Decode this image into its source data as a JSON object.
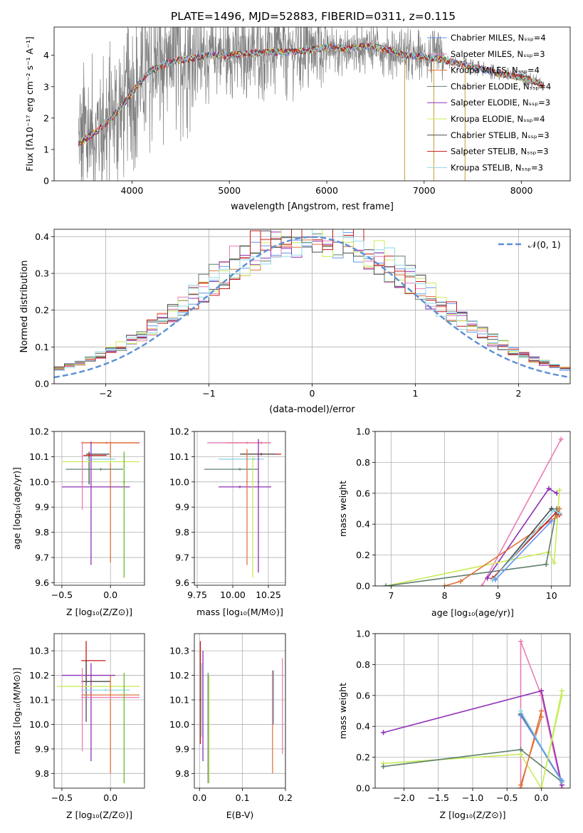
{
  "figure": {
    "title": "PLATE=1496, MJD=52883, FIBERID=0311, z=0.115"
  },
  "palette": {
    "chabrier_miles": "#6495ed",
    "salpeter_miles": "#e87eb5",
    "kroupa_miles": "#e1753a",
    "chabrier_elodie": "#5f7f6c",
    "salpeter_elodie": "#8e2fb5",
    "kroupa_elodie": "#c8ec5a",
    "chabrier_stelib": "#4a4a4a",
    "salpeter_stelib": "#c41919",
    "kroupa_stelib": "#8fd8e6",
    "observed": "#808080",
    "normal_curve": "#5b8fd4"
  },
  "chart_data": [
    {
      "id": "spectrum",
      "type": "line",
      "title": "PLATE=1496, MJD=52883, FIBERID=0311, z=0.115",
      "xlabel": "wavelength [Angstrom, rest frame]",
      "ylabel": "Flux [f_λ 10^-17 erg cm^-2 s^-1 A^-1]",
      "xlim": [
        3200,
        8500
      ],
      "ylim": [
        0,
        4.9
      ],
      "xticks": [
        4000,
        5000,
        6000,
        7000,
        8000
      ],
      "yticks": [
        0,
        1,
        2,
        3,
        4
      ],
      "legend_position": "top-right",
      "series": [
        {
          "name": "Chabrier MILES, N_SSP=4",
          "color": "#6495ed"
        },
        {
          "name": "Salpeter MILES, N_SSP=3",
          "color": "#e87eb5"
        },
        {
          "name": "Kroupa MILES, N_SSP=4",
          "color": "#e1753a"
        },
        {
          "name": "Chabrier ELODIE, N_SSP=4",
          "color": "#5f7f6c"
        },
        {
          "name": "Salpeter ELODIE, N_SSP=3",
          "color": "#8e2fb5"
        },
        {
          "name": "Kroupa ELODIE, N_SSP=4",
          "color": "#c8ec5a"
        },
        {
          "name": "Chabrier STELIB, N_SSP=3",
          "color": "#4a4a4a"
        },
        {
          "name": "Salpeter STELIB, N_SSP=3",
          "color": "#c41919"
        },
        {
          "name": "Kroupa STELIB, N_SSP=3",
          "color": "#8fd8e6"
        }
      ],
      "model_continuum": {
        "x": [
          3450,
          3550,
          3650,
          3750,
          3850,
          3950,
          4050,
          4150,
          4250,
          4400,
          4600,
          4800,
          5000,
          5200,
          5400,
          5600,
          5800,
          6000,
          6200,
          6400,
          6600,
          6800,
          7000,
          7200,
          7400,
          7600,
          7800,
          8000,
          8200,
          8230
        ],
        "y": [
          1.2,
          1.4,
          1.6,
          1.9,
          2.2,
          2.6,
          3.0,
          3.4,
          3.6,
          3.8,
          3.9,
          4.0,
          4.0,
          4.05,
          4.1,
          4.1,
          4.15,
          4.25,
          4.2,
          4.3,
          4.2,
          4.0,
          3.95,
          3.85,
          3.7,
          3.55,
          3.4,
          3.3,
          3.1,
          3.05
        ]
      },
      "observed_range": [
        3450,
        8230
      ]
    },
    {
      "id": "residuals",
      "type": "line",
      "xlabel": "(data-model)/error",
      "ylabel": "Normed distribution",
      "xlim": [
        -2.5,
        2.5
      ],
      "ylim": [
        0,
        0.42
      ],
      "xticks": [
        -2,
        -1,
        0,
        1,
        2
      ],
      "yticks": [
        0.0,
        0.1,
        0.2,
        0.3,
        0.4
      ],
      "legend": "N(0,1)",
      "legend_position": "top-right",
      "bin_width": 0.1
    },
    {
      "id": "age_vs_Z",
      "type": "scatter",
      "xlabel": "Z [log10(Z/Z⊙)]",
      "ylabel": "age [log10(age/yr)]",
      "xlim": [
        -0.58,
        0.35
      ],
      "ylim": [
        9.59,
        10.2
      ],
      "xticks": [
        -0.5,
        0.0
      ],
      "xtick_labels": [
        "−0.5",
        "0.0"
      ],
      "yticks": [
        9.6,
        9.7,
        9.8,
        9.9,
        10.0,
        10.1,
        10.2
      ],
      "points": [
        {
          "x": -0.04,
          "y": 10.155,
          "x_lo": -0.29,
          "x_hi": 0.3,
          "y_lo": 10.15,
          "y_hi": 10.16,
          "color": "#e87eb5"
        },
        {
          "x": 0.0,
          "y": 10.155,
          "x_lo": -0.3,
          "x_hi": 0.3,
          "y_lo": 9.68,
          "y_hi": 10.16,
          "color": "#e1753a"
        },
        {
          "x": -0.22,
          "y": 10.11,
          "x_lo": -0.25,
          "x_hi": -0.01,
          "y_lo": 9.99,
          "y_hi": 10.12,
          "color": "#4a4a4a"
        },
        {
          "x": -0.22,
          "y": 10.105,
          "x_lo": -0.28,
          "x_hi": -0.04,
          "y_lo": 10.1,
          "y_hi": 10.11,
          "color": "#c41919"
        },
        {
          "x": 0.0,
          "y": 10.09,
          "x_lo": -0.25,
          "x_hi": 0.05,
          "y_lo": 10.085,
          "y_hi": 10.095,
          "color": "#8fd8e6"
        },
        {
          "x": 0.0,
          "y": 10.08,
          "x_lo": -0.5,
          "x_hi": 0.3,
          "y_lo": 10.075,
          "y_hi": 10.085,
          "color": "#c8ec5a"
        },
        {
          "x": -0.1,
          "y": 10.05,
          "x_lo": -0.46,
          "x_hi": 0.13,
          "y_lo": 10.045,
          "y_hi": 10.055,
          "color": "#5f7f6c"
        },
        {
          "x": -0.2,
          "y": 9.98,
          "x_lo": -0.5,
          "x_hi": 0.2,
          "y_lo": 9.67,
          "y_hi": 10.16,
          "color": "#8e2fb5"
        },
        {
          "x": 0.14,
          "y": 10.0,
          "x_lo": 0.13,
          "x_hi": 0.15,
          "y_lo": 9.62,
          "y_hi": 10.12,
          "color": "#6bbd2a"
        },
        {
          "x": -0.29,
          "y": 10.0,
          "x_lo": -0.3,
          "x_hi": -0.28,
          "y_lo": 9.89,
          "y_hi": 10.16,
          "color": "#e87eb5"
        }
      ]
    },
    {
      "id": "age_vs_mass",
      "type": "scatter",
      "xlabel": "mass [log10(M/M⊙)]",
      "ylabel": "",
      "xlim": [
        9.73,
        10.37
      ],
      "ylim": [
        9.59,
        10.2
      ],
      "xticks": [
        9.75,
        10.0,
        10.25
      ],
      "xtick_labels": [
        "9.75",
        "10.00",
        "10.25"
      ],
      "yticks": [
        9.6,
        9.7,
        9.8,
        9.9,
        10.0,
        10.1,
        10.2
      ],
      "points": [
        {
          "x": 10.2,
          "y": 10.155,
          "x_lo": 9.95,
          "x_hi": 10.26,
          "y_lo": 10.15,
          "y_hi": 10.16,
          "color": "#e1753a"
        },
        {
          "x": 10.1,
          "y": 10.155,
          "x_lo": 9.82,
          "x_hi": 10.27,
          "y_lo": 10.15,
          "y_hi": 10.16,
          "color": "#e87eb5"
        },
        {
          "x": 10.2,
          "y": 10.11,
          "x_lo": 10.06,
          "x_hi": 10.34,
          "y_lo": 10.105,
          "y_hi": 10.115,
          "color": "#c41919"
        },
        {
          "x": 10.18,
          "y": 10.11,
          "x_lo": 10.05,
          "x_hi": 10.3,
          "y_lo": 10.105,
          "y_hi": 10.115,
          "color": "#4a4a4a"
        },
        {
          "x": 10.15,
          "y": 10.09,
          "x_lo": 9.9,
          "x_hi": 10.22,
          "y_lo": 10.085,
          "y_hi": 10.095,
          "color": "#8fd8e6"
        },
        {
          "x": 10.05,
          "y": 10.05,
          "x_lo": 9.8,
          "x_hi": 10.18,
          "y_lo": 10.045,
          "y_hi": 10.055,
          "color": "#5f7f6c"
        },
        {
          "x": 10.05,
          "y": 9.98,
          "x_lo": 9.9,
          "x_hi": 10.27,
          "y_lo": 9.975,
          "y_hi": 9.985,
          "color": "#8e2fb5"
        },
        {
          "x": 10.18,
          "y": 10.0,
          "x_lo": 10.175,
          "x_hi": 10.185,
          "y_lo": 9.64,
          "y_hi": 10.17,
          "color": "#8e2fb5"
        },
        {
          "x": 10.14,
          "y": 10.0,
          "x_lo": 10.135,
          "x_hi": 10.145,
          "y_lo": 9.62,
          "y_hi": 10.1,
          "color": "#c8ec5a"
        },
        {
          "x": 10.1,
          "y": 10.0,
          "x_lo": 10.095,
          "x_hi": 10.105,
          "y_lo": 9.67,
          "y_hi": 10.13,
          "color": "#e1753a"
        }
      ]
    },
    {
      "id": "weight_vs_age",
      "type": "line",
      "xlabel": "age [log10(age/yr)]",
      "ylabel": "mass weight",
      "xlim": [
        6.7,
        10.35
      ],
      "ylim": [
        0.0,
        1.0
      ],
      "xticks": [
        7,
        8,
        9,
        10
      ],
      "yticks": [
        0.0,
        0.2,
        0.4,
        0.6,
        0.8,
        1.0
      ],
      "series": [
        {
          "color": "#e87eb5",
          "x": [
            8.7,
            10.18
          ],
          "y": [
            0.0,
            0.95
          ]
        },
        {
          "color": "#8e2fb5",
          "x": [
            8.8,
            9.95,
            10.1
          ],
          "y": [
            0.05,
            0.63,
            0.6
          ]
        },
        {
          "color": "#c8ec5a",
          "x": [
            6.9,
            9.95,
            10.05,
            10.15
          ],
          "y": [
            0.0,
            0.22,
            0.15,
            0.62
          ]
        },
        {
          "color": "#5f7f6c",
          "x": [
            6.9,
            9.9,
            10.1
          ],
          "y": [
            0.0,
            0.14,
            0.5
          ]
        },
        {
          "color": "#e1753a",
          "x": [
            8.0,
            8.3,
            10.1,
            10.15
          ],
          "y": [
            0.0,
            0.03,
            0.45,
            0.5
          ]
        },
        {
          "color": "#4a4a4a",
          "x": [
            8.9,
            10.0,
            10.15
          ],
          "y": [
            0.04,
            0.5,
            0.47
          ]
        },
        {
          "color": "#c41919",
          "x": [
            8.9,
            10.1,
            10.15
          ],
          "y": [
            0.05,
            0.48,
            0.46
          ]
        },
        {
          "color": "#8fd8e6",
          "x": [
            8.9,
            10.05,
            10.15
          ],
          "y": [
            0.04,
            0.49,
            0.47
          ]
        },
        {
          "color": "#6495ed",
          "x": [
            8.95,
            10.0
          ],
          "y": [
            0.04,
            0.42
          ]
        }
      ]
    },
    {
      "id": "mass_vs_Z",
      "type": "scatter",
      "xlabel": "Z [log10(Z/Z⊙)]",
      "ylabel": "mass [log10(M/M⊙)]",
      "xlim": [
        -0.58,
        0.35
      ],
      "ylim": [
        9.74,
        10.37
      ],
      "xticks": [
        -0.5,
        0.0
      ],
      "xtick_labels": [
        "−0.5",
        "0.0"
      ],
      "yticks": [
        9.8,
        9.9,
        10.0,
        10.1,
        10.2,
        10.3
      ],
      "points": [
        {
          "x": -0.25,
          "y": 10.26,
          "x_lo": -0.3,
          "x_hi": -0.05,
          "y_lo": 10.17,
          "y_hi": 10.34,
          "color": "#c41919"
        },
        {
          "x": -0.2,
          "y": 10.2,
          "x_lo": -0.5,
          "x_hi": 0.05,
          "y_lo": 9.85,
          "y_hi": 10.25,
          "color": "#8e2fb5"
        },
        {
          "x": -0.25,
          "y": 10.175,
          "x_lo": -0.3,
          "x_hi": 0.0,
          "y_lo": 10.01,
          "y_hi": 10.26,
          "color": "#4a4a4a"
        },
        {
          "x": 0.0,
          "y": 10.155,
          "x_lo": -0.55,
          "x_hi": 0.3,
          "y_lo": 10.15,
          "y_hi": 10.16,
          "color": "#c8ec5a"
        },
        {
          "x": -0.05,
          "y": 10.14,
          "x_lo": -0.3,
          "x_hi": 0.2,
          "y_lo": 10.135,
          "y_hi": 10.145,
          "color": "#8fd8e6"
        },
        {
          "x": 0.0,
          "y": 10.12,
          "x_lo": -0.3,
          "x_hi": 0.3,
          "y_lo": 9.8,
          "y_hi": 10.2,
          "color": "#e1753a"
        },
        {
          "x": 0.0,
          "y": 10.11,
          "x_lo": -0.3,
          "x_hi": 0.3,
          "y_lo": 10.105,
          "y_hi": 10.115,
          "color": "#e87eb5"
        },
        {
          "x": 0.14,
          "y": 10.05,
          "x_lo": 0.135,
          "x_hi": 0.145,
          "y_lo": 9.76,
          "y_hi": 10.21,
          "color": "#6bbd2a"
        },
        {
          "x": -0.29,
          "y": 10.05,
          "x_lo": -0.295,
          "x_hi": -0.285,
          "y_lo": 9.89,
          "y_hi": 10.23,
          "color": "#e87eb5"
        }
      ]
    },
    {
      "id": "mass_vs_EBV",
      "type": "scatter",
      "xlabel": "E(B-V)",
      "ylabel": "",
      "xlim": [
        -0.012,
        0.2
      ],
      "ylim": [
        9.74,
        10.37
      ],
      "xticks": [
        0.0,
        0.1,
        0.2
      ],
      "xtick_labels": [
        "0.0",
        "0.1",
        "0.2"
      ],
      "yticks": [
        9.8,
        9.9,
        10.0,
        10.1,
        10.2,
        10.3
      ],
      "points": [
        {
          "x": 0.002,
          "y": 10.1,
          "x_lo": 0.0,
          "x_hi": 0.004,
          "y_lo": 9.92,
          "y_hi": 10.34,
          "color": "#c41919"
        },
        {
          "x": 0.005,
          "y": 10.1,
          "x_lo": 0.004,
          "x_hi": 0.006,
          "y_lo": 9.95,
          "y_hi": 10.25,
          "color": "#8fd8e6"
        },
        {
          "x": 0.008,
          "y": 10.05,
          "x_lo": 0.007,
          "x_hi": 0.009,
          "y_lo": 9.85,
          "y_hi": 10.3,
          "color": "#8e2fb5"
        },
        {
          "x": 0.02,
          "y": 10.0,
          "x_lo": 0.019,
          "x_hi": 0.021,
          "y_lo": 9.76,
          "y_hi": 10.21,
          "color": "#5f7f6c"
        },
        {
          "x": 0.023,
          "y": 10.0,
          "x_lo": 0.022,
          "x_hi": 0.024,
          "y_lo": 9.76,
          "y_hi": 10.2,
          "color": "#c8ec5a"
        },
        {
          "x": 0.17,
          "y": 10.0,
          "x_lo": 0.169,
          "x_hi": 0.171,
          "y_lo": 9.8,
          "y_hi": 10.22,
          "color": "#e1753a"
        },
        {
          "x": 0.172,
          "y": 10.1,
          "x_lo": 0.171,
          "x_hi": 0.173,
          "y_lo": 10.0,
          "y_hi": 10.22,
          "color": "#6495ed"
        },
        {
          "x": 0.193,
          "y": 10.05,
          "x_lo": 0.192,
          "x_hi": 0.194,
          "y_lo": 9.88,
          "y_hi": 10.27,
          "color": "#e87eb5"
        }
      ]
    },
    {
      "id": "weight_vs_Z",
      "type": "line",
      "xlabel": "Z [log10(Z/Z⊙)]",
      "ylabel": "mass weight",
      "xlim": [
        -2.42,
        0.42
      ],
      "ylim": [
        0.0,
        1.0
      ],
      "xticks": [
        -2.0,
        -1.5,
        -1.0,
        -0.5,
        0.0
      ],
      "xtick_labels": [
        "−2.0",
        "−1.5",
        "−1.0",
        "−0.5",
        "0.0"
      ],
      "yticks": [
        0.0,
        0.2,
        0.4,
        0.6,
        0.8,
        1.0
      ],
      "series": [
        {
          "color": "#e87eb5",
          "x": [
            -0.3,
            -0.3,
            0.0,
            0.3
          ],
          "y": [
            0.0,
            0.95,
            0.6,
            0.0
          ]
        },
        {
          "color": "#8e2fb5",
          "x": [
            -2.3,
            0.0,
            0.3
          ],
          "y": [
            0.36,
            0.63,
            0.02
          ]
        },
        {
          "color": "#c8ec5a",
          "x": [
            -2.3,
            -0.3,
            0.0,
            0.3
          ],
          "y": [
            0.16,
            0.22,
            0.0,
            0.63
          ]
        },
        {
          "color": "#5f7f6c",
          "x": [
            -2.3,
            -0.3,
            0.3
          ],
          "y": [
            0.14,
            0.25,
            0.04
          ]
        },
        {
          "color": "#e1753a",
          "x": [
            -0.3,
            0.0,
            0.0,
            -0.3
          ],
          "y": [
            0.0,
            0.5,
            0.46,
            0.02
          ]
        },
        {
          "color": "#4a4a4a",
          "x": [
            -0.3,
            0.3
          ],
          "y": [
            0.48,
            0.04
          ]
        },
        {
          "color": "#8fd8e6",
          "x": [
            -0.3,
            0.3
          ],
          "y": [
            0.5,
            0.04
          ]
        },
        {
          "color": "#6495ed",
          "x": [
            -0.3,
            0.3
          ],
          "y": [
            0.47,
            0.05
          ]
        },
        {
          "color": "#c8ec5a",
          "x": [
            0.0,
            0.3
          ],
          "y": [
            0.0,
            0.6
          ]
        }
      ]
    }
  ]
}
